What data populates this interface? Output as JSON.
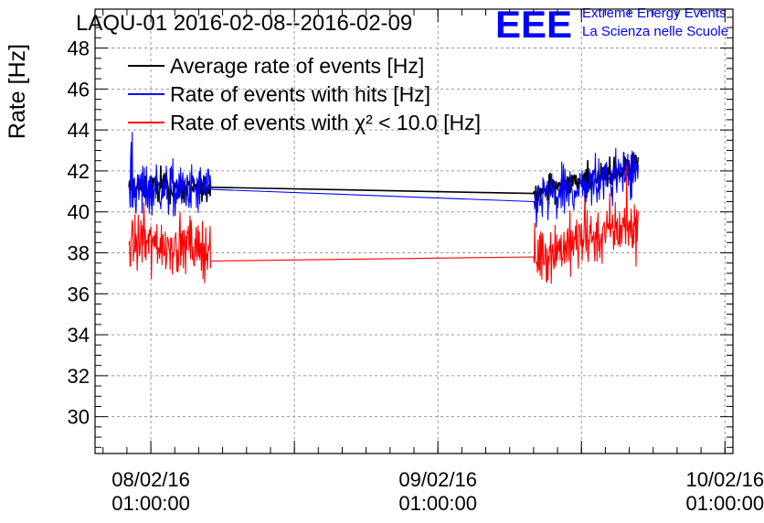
{
  "chart_data": {
    "type": "line",
    "title": "LAQU-01 2016-02-08--2016-02-09",
    "ylabel": "Rate [Hz]",
    "xlabel": "",
    "ylim": [
      28.2,
      49.9
    ],
    "yticks": [
      30,
      32,
      34,
      36,
      38,
      40,
      42,
      44,
      46,
      48
    ],
    "xlim": [
      "2016-02-07 20:20",
      "2016-02-10 01:40"
    ],
    "xticks": [
      {
        "x": "2016-02-08 01:00:00",
        "date": "08/02/16",
        "time": "01:00:00"
      },
      {
        "x": "2016-02-09 01:00:00",
        "date": "09/02/16",
        "time": "01:00:00"
      },
      {
        "x": "2016-02-10 01:00:00",
        "date": "10/02/16",
        "time": "01:00:00"
      }
    ],
    "grid": true,
    "legend_position": "top-left",
    "logo": {
      "text": "EEE",
      "line1": "Extreme Energy Events",
      "line2": "La Scienza nelle Scuole",
      "color": "#0000ff"
    },
    "series": [
      {
        "name": "Average rate of events [Hz]",
        "color": "#000000",
        "noise_range": 1.4,
        "x": [
          "2016-02-07 23:10",
          "2016-02-08 01:00",
          "2016-02-08 04:00",
          "2016-02-08 06:00",
          "2016-02-08 06:00",
          "2016-02-09 09:00",
          "2016-02-09 09:00",
          "2016-02-09 12:00",
          "2016-02-09 15:00",
          "2016-02-09 17:45"
        ],
        "y": [
          41.2,
          41.2,
          41.1,
          41.2,
          41.2,
          40.9,
          40.9,
          41.4,
          41.8,
          42.3
        ]
      },
      {
        "name": "Rate of events with hits [Hz]",
        "color": "#0000ff",
        "noise_range": 2.9,
        "x": [
          "2016-02-07 23:10",
          "2016-02-08 01:00",
          "2016-02-08 04:00",
          "2016-02-08 06:00",
          "2016-02-08 06:00",
          "2016-02-09 09:00",
          "2016-02-09 09:00",
          "2016-02-09 12:00",
          "2016-02-09 15:00",
          "2016-02-09 17:45"
        ],
        "y": [
          41.1,
          41.2,
          41.0,
          41.1,
          41.1,
          40.5,
          40.5,
          41.0,
          41.6,
          42.1
        ]
      },
      {
        "name": "Rate of events with χ² < 10.0 [Hz]",
        "color": "#ff0000",
        "noise_range": 3.3,
        "x": [
          "2016-02-07 23:10",
          "2016-02-08 01:00",
          "2016-02-08 04:00",
          "2016-02-08 06:00",
          "2016-02-08 06:00",
          "2016-02-09 09:00",
          "2016-02-09 09:00",
          "2016-02-09 12:00",
          "2016-02-09 15:00",
          "2016-02-09 17:45"
        ],
        "y": [
          38.4,
          38.5,
          38.3,
          38.2,
          37.6,
          37.8,
          37.8,
          38.4,
          39.0,
          39.5
        ]
      }
    ]
  }
}
